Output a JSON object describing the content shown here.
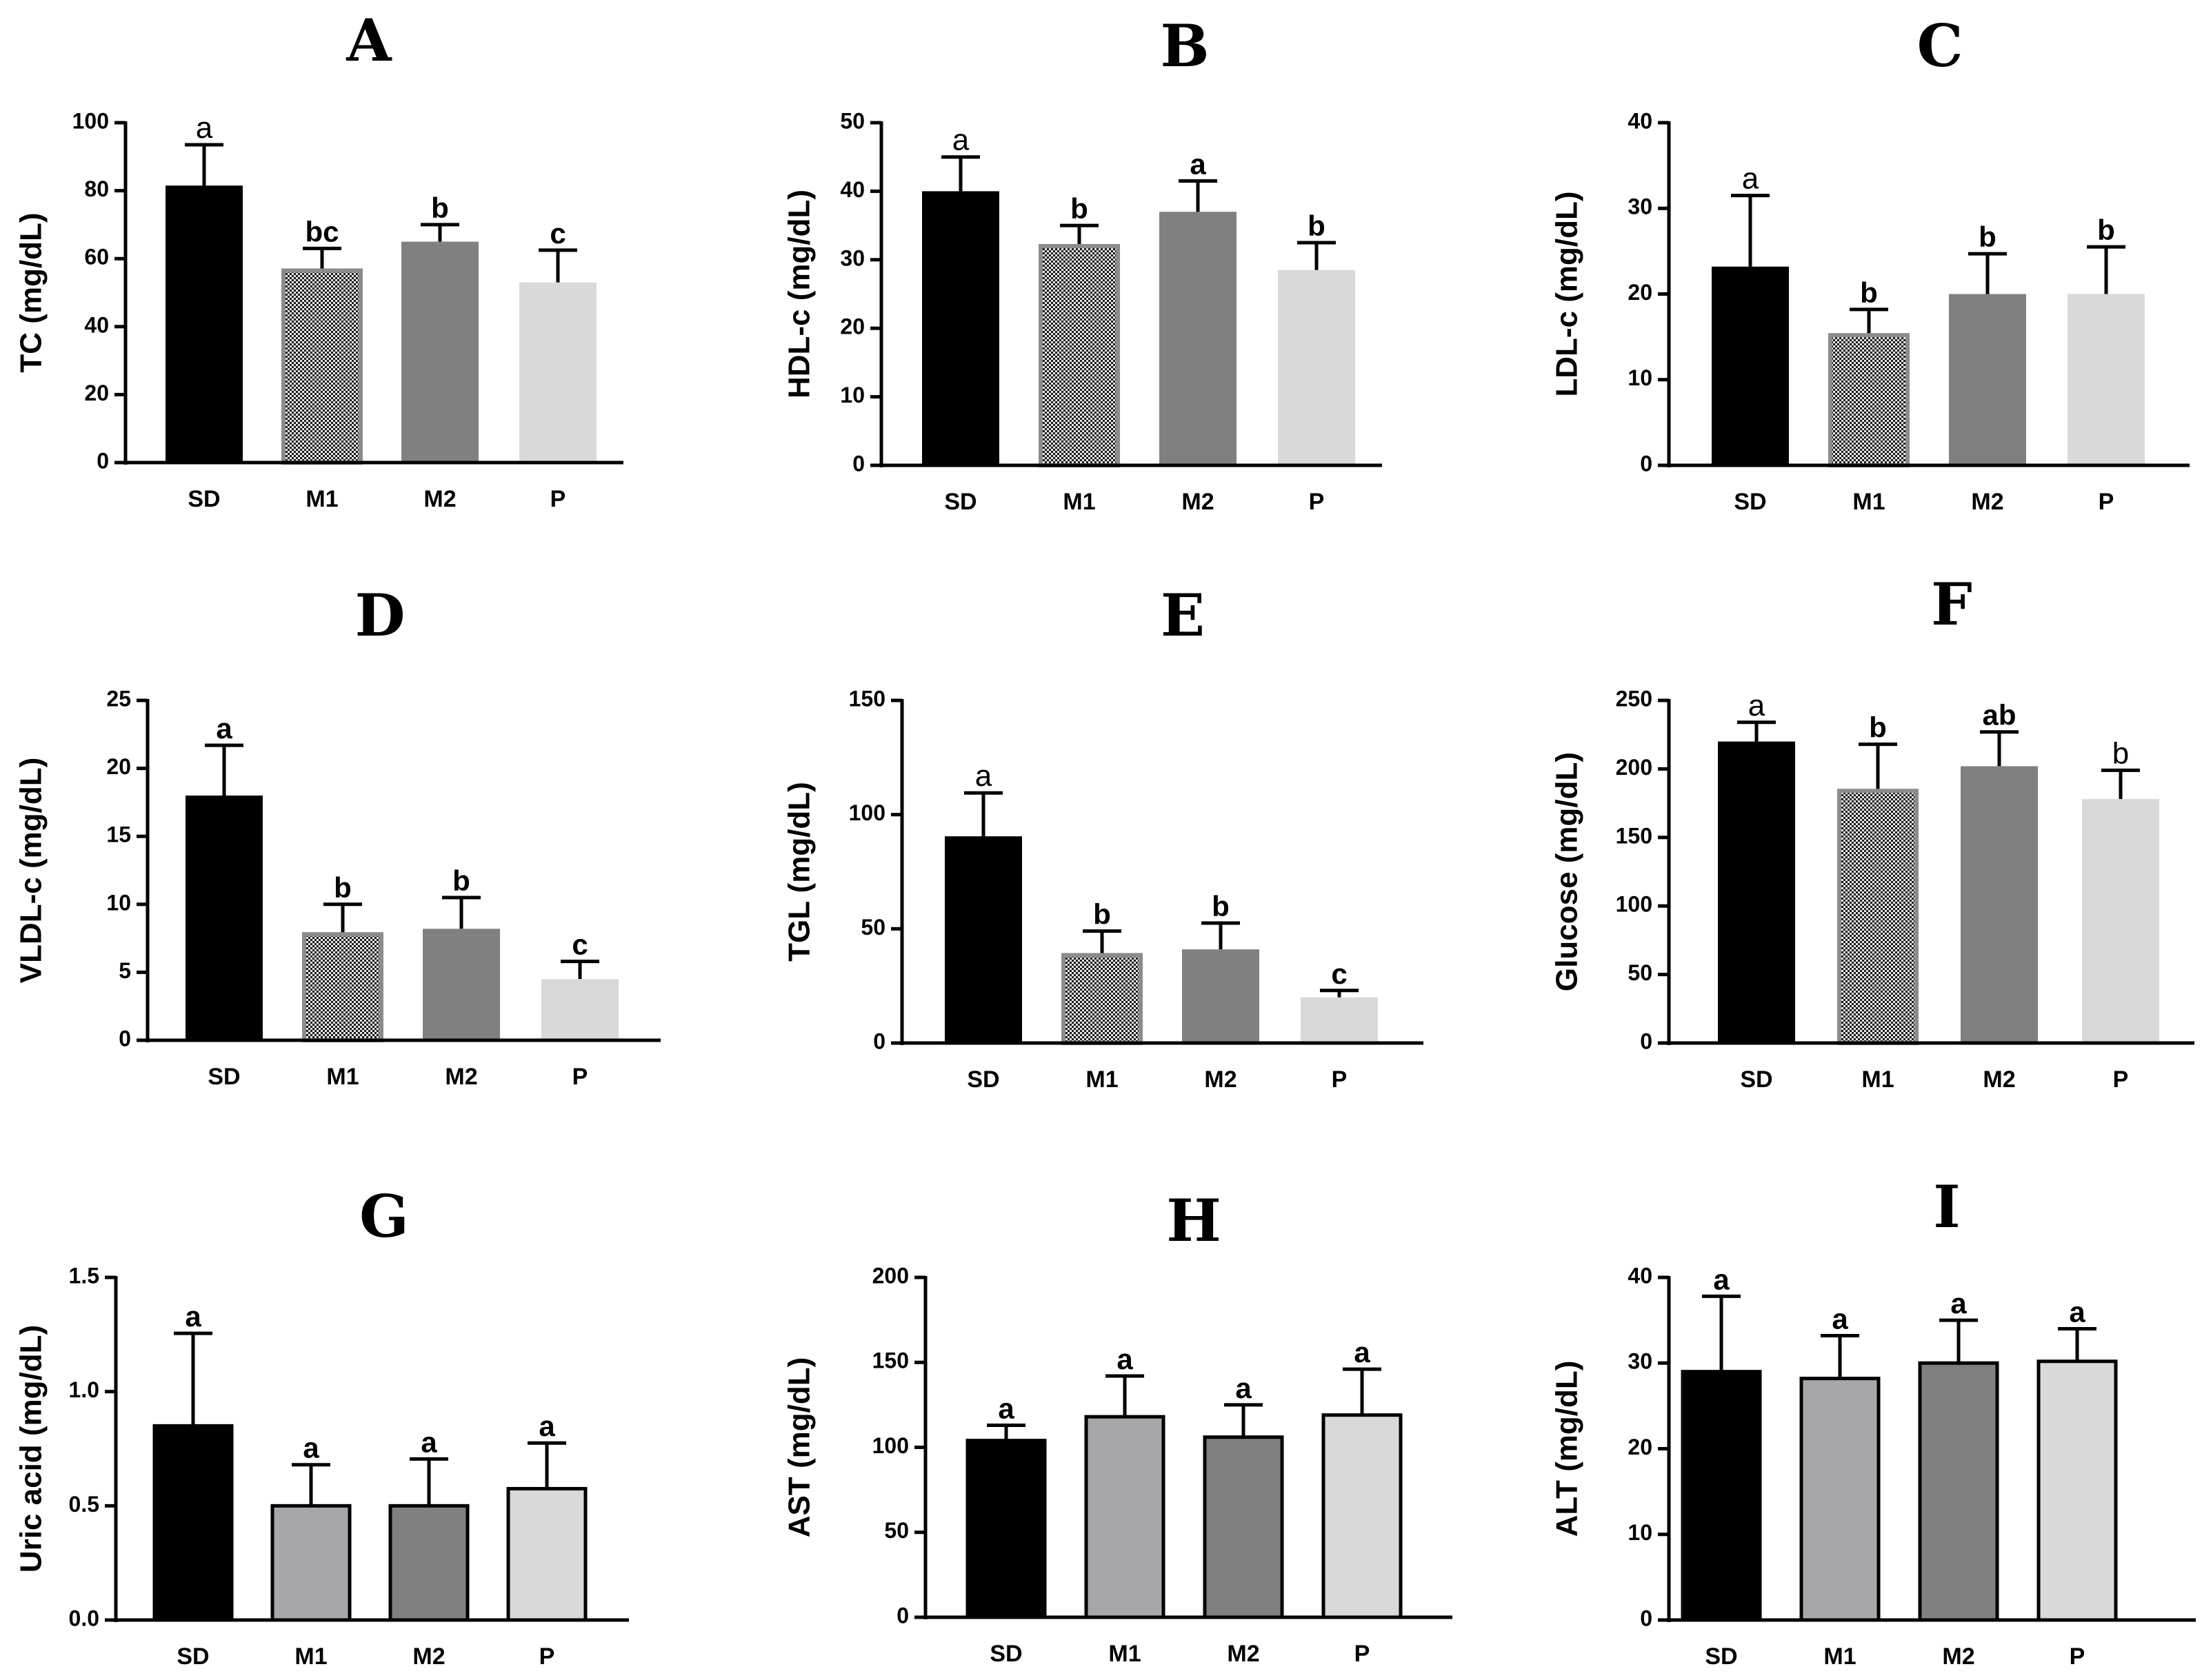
{
  "figure": {
    "colors": {
      "SD": "#000000",
      "M1_hatch_bg": "#e6e6e6",
      "M1_hatch_dot": "#1c1c1c",
      "M1_light": "#a6a6ab",
      "M2": "#808080",
      "P": "#d9d9d9",
      "axis": "#000000"
    }
  },
  "chart_data": [
    {
      "panel": "A",
      "type": "bar",
      "ylabel": "TC (mg/dL)",
      "categories": [
        "SD",
        "M1",
        "M2",
        "P"
      ],
      "values": [
        81.5,
        56.5,
        65,
        53
      ],
      "errors": [
        12,
        6.5,
        5,
        9.5
      ],
      "letters": [
        "a",
        "bc",
        "b",
        "c"
      ],
      "letter_bold": [
        false,
        true,
        true,
        true
      ],
      "ylim": [
        0,
        100
      ],
      "yticks": [
        "0",
        "20",
        "40",
        "60",
        "80",
        "100"
      ],
      "m1_style": "hatched"
    },
    {
      "panel": "B",
      "type": "bar",
      "ylabel": "HDL-c (mg/dL)",
      "categories": [
        "SD",
        "M1",
        "M2",
        "P"
      ],
      "values": [
        40,
        32,
        37,
        28.5
      ],
      "errors": [
        5,
        3,
        4.5,
        4
      ],
      "letters": [
        "a",
        "b",
        "a",
        "b"
      ],
      "letter_bold": [
        false,
        true,
        true,
        true
      ],
      "ylim": [
        0,
        50
      ],
      "yticks": [
        "0",
        "10",
        "20",
        "30",
        "40",
        "50"
      ],
      "m1_style": "hatched"
    },
    {
      "panel": "C",
      "type": "bar",
      "ylabel": "LDL-c (mg/dL)",
      "categories": [
        "SD",
        "M1",
        "M2",
        "P"
      ],
      "values": [
        23.2,
        15.2,
        20,
        20
      ],
      "errors": [
        8.3,
        3,
        4.7,
        5.5
      ],
      "letters": [
        "a",
        "b",
        "b",
        "b"
      ],
      "letter_bold": [
        false,
        true,
        true,
        true
      ],
      "ylim": [
        0,
        40
      ],
      "yticks": [
        "0",
        "10",
        "20",
        "30",
        "40"
      ],
      "m1_style": "hatched"
    },
    {
      "panel": "D",
      "type": "bar",
      "ylabel": "VLDL-c (mg/dL)",
      "categories": [
        "SD",
        "M1",
        "M2",
        "P"
      ],
      "values": [
        18,
        7.8,
        8.2,
        4.5
      ],
      "errors": [
        3.7,
        2.2,
        2.3,
        1.3
      ],
      "letters": [
        "a",
        "b",
        "b",
        "c"
      ],
      "letter_bold": [
        true,
        true,
        true,
        true
      ],
      "ylim": [
        0,
        25
      ],
      "yticks": [
        "0",
        "5",
        "10",
        "15",
        "20",
        "25"
      ],
      "m1_style": "hatched"
    },
    {
      "panel": "E",
      "type": "bar",
      "ylabel": "TGL (mg/dL)",
      "categories": [
        "SD",
        "M1",
        "M2",
        "P"
      ],
      "values": [
        90.5,
        38.5,
        41,
        20
      ],
      "errors": [
        19,
        10.5,
        11.5,
        3
      ],
      "letters": [
        "a",
        "b",
        "b",
        "c"
      ],
      "letter_bold": [
        false,
        true,
        true,
        true
      ],
      "ylim": [
        0,
        150
      ],
      "yticks": [
        "0",
        "50",
        "100",
        "150"
      ],
      "m1_style": "hatched"
    },
    {
      "panel": "F",
      "type": "bar",
      "ylabel": "Glucose (mg/dL)",
      "categories": [
        "SD",
        "M1",
        "M2",
        "P"
      ],
      "values": [
        220,
        184,
        202,
        178
      ],
      "errors": [
        14,
        34,
        25,
        21
      ],
      "letters": [
        "a",
        "b",
        "ab",
        "b"
      ],
      "letter_bold": [
        false,
        true,
        true,
        false
      ],
      "ylim": [
        0,
        250
      ],
      "yticks": [
        "0",
        "50",
        "100",
        "150",
        "200",
        "250"
      ],
      "m1_style": "hatched"
    },
    {
      "panel": "G",
      "type": "bar",
      "ylabel": "Uric acid (mg/dL)",
      "categories": [
        "SD",
        "M1",
        "M2",
        "P"
      ],
      "values": [
        0.85,
        0.5,
        0.5,
        0.575
      ],
      "errors": [
        0.405,
        0.18,
        0.205,
        0.2
      ],
      "letters": [
        "a",
        "a",
        "a",
        "a"
      ],
      "letter_bold": [
        true,
        true,
        true,
        true
      ],
      "ylim": [
        0,
        1.5
      ],
      "yticks": [
        "0.0",
        "0.5",
        "1.0",
        "1.5"
      ],
      "m1_style": "plain"
    },
    {
      "panel": "H",
      "type": "bar",
      "ylabel": "AST (mg/dL)",
      "categories": [
        "SD",
        "M1",
        "M2",
        "P"
      ],
      "values": [
        104,
        118,
        106,
        119
      ],
      "errors": [
        9,
        24,
        19,
        27
      ],
      "letters": [
        "a",
        "a",
        "a",
        "a"
      ],
      "letter_bold": [
        true,
        true,
        true,
        true
      ],
      "ylim": [
        0,
        200
      ],
      "yticks": [
        "0",
        "50",
        "100",
        "150",
        "200"
      ],
      "m1_style": "plain"
    },
    {
      "panel": "I",
      "type": "bar",
      "ylabel": "ALT (mg/dL)",
      "categories": [
        "SD",
        "M1",
        "M2",
        "P"
      ],
      "values": [
        29,
        28.2,
        30,
        30.2
      ],
      "errors": [
        8.8,
        5,
        5,
        3.8
      ],
      "letters": [
        "a",
        "a",
        "a",
        "a"
      ],
      "letter_bold": [
        true,
        true,
        true,
        true
      ],
      "ylim": [
        0,
        40
      ],
      "yticks": [
        "0",
        "10",
        "20",
        "30",
        "40"
      ],
      "m1_style": "plain"
    }
  ]
}
